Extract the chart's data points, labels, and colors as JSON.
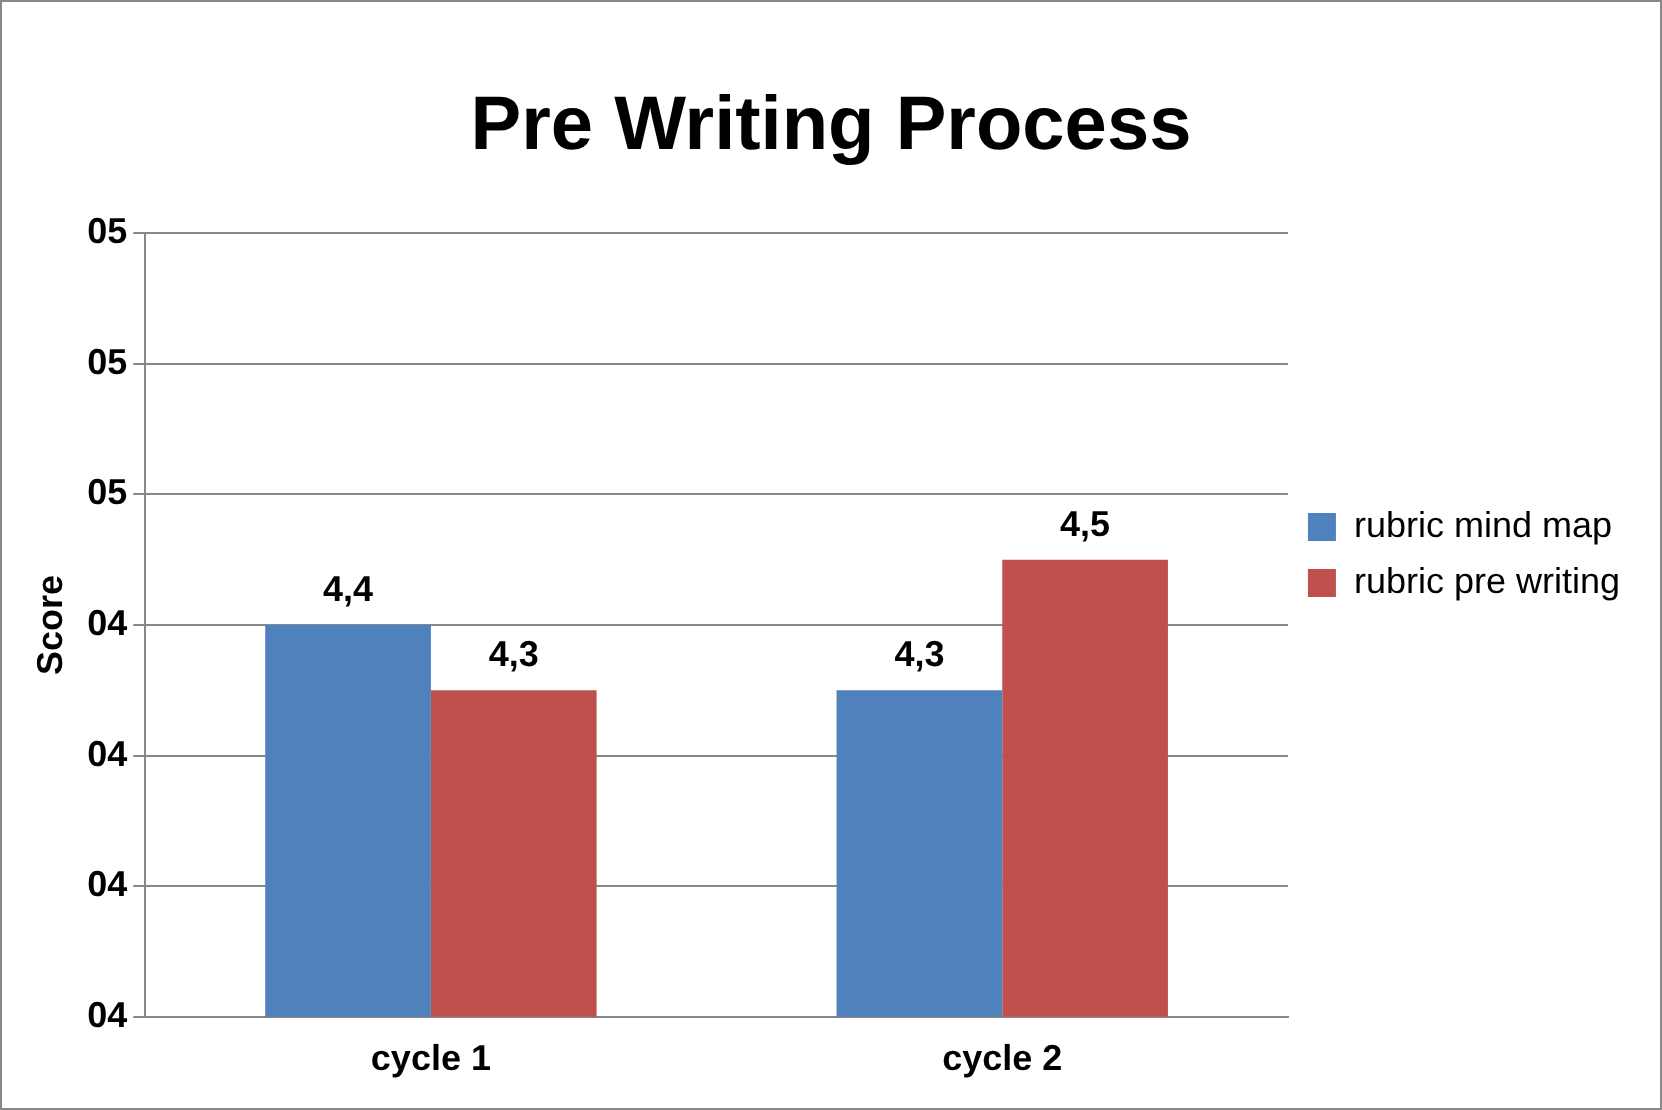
{
  "chart_data": {
    "type": "bar",
    "title": "Pre Writing Process",
    "ylabel": "Score",
    "categories": [
      "cycle 1",
      "cycle 2"
    ],
    "series": [
      {
        "name": "rubric mind map",
        "color": "#4f81bd",
        "values": [
          4.4,
          4.3
        ],
        "value_labels": [
          "4,4",
          "4,3"
        ]
      },
      {
        "name": "rubric pre writing",
        "color": "#c0504d",
        "values": [
          4.3,
          4.5
        ],
        "value_labels": [
          "4,3",
          "4,5"
        ]
      }
    ],
    "ylim": [
      3.8,
      5.0
    ],
    "yticks": [
      {
        "value": 3.8,
        "label": "04"
      },
      {
        "value": 4.0,
        "label": "04"
      },
      {
        "value": 4.2,
        "label": "04"
      },
      {
        "value": 4.4,
        "label": "04"
      },
      {
        "value": 4.6,
        "label": "05"
      },
      {
        "value": 4.8,
        "label": "05"
      },
      {
        "value": 5.0,
        "label": "05"
      }
    ],
    "grid": "y",
    "legend": "right"
  }
}
